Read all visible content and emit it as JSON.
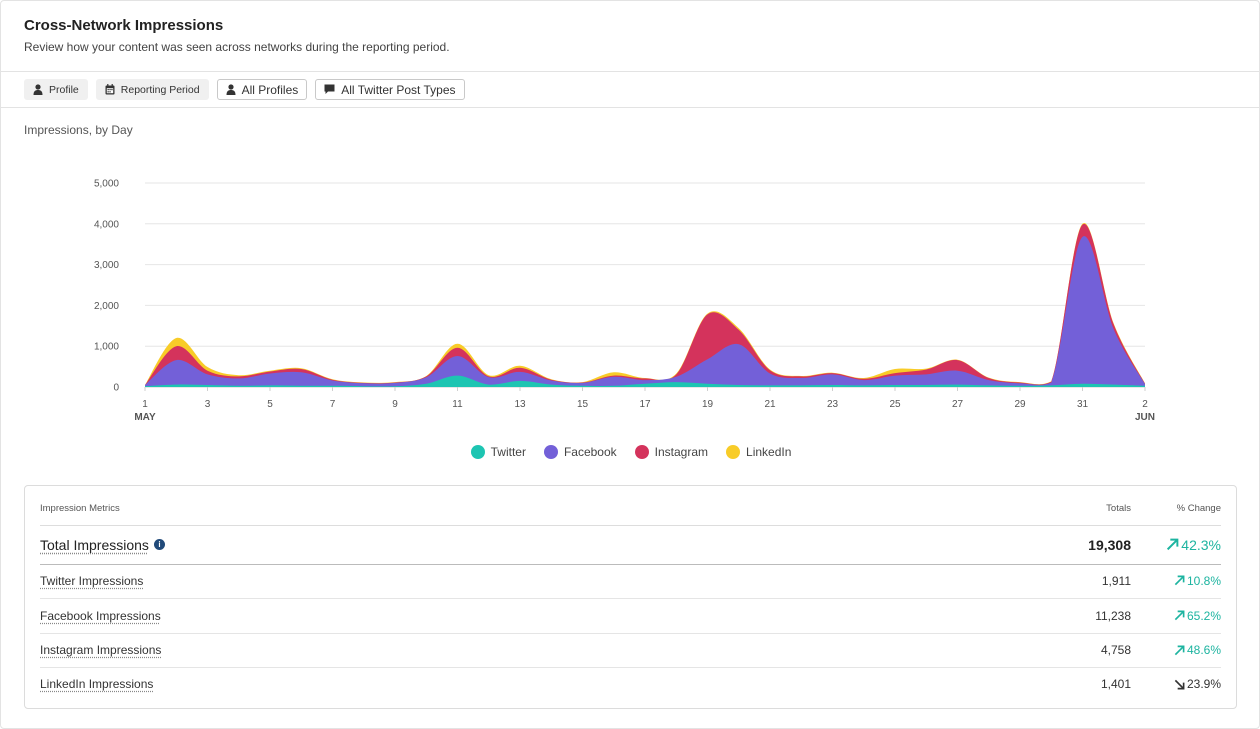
{
  "header": {
    "title": "Cross-Network Impressions",
    "subtitle": "Review how your content was seen across networks during the reporting period."
  },
  "filters": [
    {
      "label": "Profile",
      "icon": "person-icon"
    },
    {
      "label": "Reporting Period",
      "icon": "calendar-icon"
    },
    {
      "label": "All Profiles",
      "icon": "person-icon"
    },
    {
      "label": "All Twitter Post Types",
      "icon": "comment-icon"
    }
  ],
  "chart_title": "Impressions, by Day",
  "chart_data": {
    "type": "area",
    "stacked": true,
    "x": [
      "May 1",
      "May 2",
      "May 3",
      "May 4",
      "May 5",
      "May 6",
      "May 7",
      "May 8",
      "May 9",
      "May 10",
      "May 11",
      "May 12",
      "May 13",
      "May 14",
      "May 15",
      "May 16",
      "May 17",
      "May 18",
      "May 19",
      "May 20",
      "May 21",
      "May 22",
      "May 23",
      "May 24",
      "May 25",
      "May 26",
      "May 27",
      "May 28",
      "May 29",
      "May 30",
      "May 31",
      "Jun 1",
      "Jun 2"
    ],
    "tick_labels": [
      {
        "day": 0,
        "label": "1",
        "sub": "MAY"
      },
      {
        "day": 2,
        "label": "3"
      },
      {
        "day": 4,
        "label": "5"
      },
      {
        "day": 6,
        "label": "7"
      },
      {
        "day": 8,
        "label": "9"
      },
      {
        "day": 10,
        "label": "11"
      },
      {
        "day": 12,
        "label": "13"
      },
      {
        "day": 14,
        "label": "15"
      },
      {
        "day": 16,
        "label": "17"
      },
      {
        "day": 18,
        "label": "19"
      },
      {
        "day": 20,
        "label": "21"
      },
      {
        "day": 22,
        "label": "23"
      },
      {
        "day": 24,
        "label": "25"
      },
      {
        "day": 26,
        "label": "27"
      },
      {
        "day": 28,
        "label": "29"
      },
      {
        "day": 30,
        "label": "31"
      },
      {
        "day": 32,
        "label": "2",
        "sub": "JUN"
      }
    ],
    "y_ticks": [
      0,
      1000,
      2000,
      3000,
      4000,
      5000
    ],
    "y_tick_labels": [
      "0",
      "1,000",
      "2,000",
      "3,000",
      "4,000",
      "5,000"
    ],
    "ylim": [
      0,
      5000
    ],
    "grid": true,
    "legend_position": "bottom",
    "series": [
      {
        "name": "Twitter",
        "color": "#1dc5b2",
        "values": [
          20,
          60,
          50,
          30,
          40,
          30,
          30,
          20,
          20,
          80,
          280,
          60,
          150,
          60,
          30,
          30,
          80,
          120,
          80,
          50,
          40,
          40,
          50,
          40,
          50,
          50,
          60,
          40,
          30,
          40,
          80,
          60,
          30
        ]
      },
      {
        "name": "Facebook",
        "color": "#7360d8",
        "values": [
          30,
          600,
          260,
          180,
          290,
          330,
          130,
          70,
          80,
          160,
          480,
          180,
          220,
          100,
          70,
          220,
          90,
          130,
          600,
          1000,
          290,
          180,
          260,
          130,
          230,
          260,
          340,
          130,
          60,
          70,
          3600,
          1350,
          40
        ]
      },
      {
        "name": "Instagram",
        "color": "#d4335c",
        "values": [
          0,
          340,
          90,
          50,
          50,
          80,
          20,
          10,
          10,
          20,
          200,
          20,
          100,
          20,
          10,
          30,
          40,
          60,
          1100,
          350,
          80,
          40,
          30,
          30,
          60,
          120,
          260,
          50,
          20,
          20,
          300,
          120,
          10
        ]
      },
      {
        "name": "LinkedIn",
        "color": "#f8cc28",
        "values": [
          0,
          200,
          90,
          30,
          20,
          20,
          10,
          10,
          10,
          10,
          100,
          30,
          50,
          10,
          10,
          80,
          10,
          20,
          20,
          40,
          20,
          10,
          10,
          20,
          100,
          20,
          10,
          10,
          10,
          10,
          20,
          20,
          10
        ]
      }
    ]
  },
  "table": {
    "headers": {
      "metric": "Impression Metrics",
      "totals": "Totals",
      "change": "% Change"
    },
    "rows": [
      {
        "name": "Total Impressions",
        "total": "19,308",
        "change": "42.3%",
        "dir": "up"
      },
      {
        "name": "Twitter Impressions",
        "total": "1,911",
        "change": "10.8%",
        "dir": "up"
      },
      {
        "name": "Facebook Impressions",
        "total": "11,238",
        "change": "65.2%",
        "dir": "up"
      },
      {
        "name": "Instagram Impressions",
        "total": "4,758",
        "change": "48.6%",
        "dir": "up"
      },
      {
        "name": "LinkedIn Impressions",
        "total": "1,401",
        "change": "23.9%",
        "dir": "down"
      }
    ],
    "colors": {
      "up": "#1db4a0",
      "down": "#333333"
    }
  }
}
